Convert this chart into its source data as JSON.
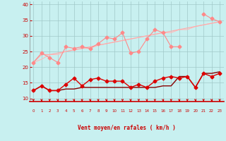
{
  "xlabel": "Vent moyen/en rafales ( km/h )",
  "bg_color": "#c8f0f0",
  "grid_color": "#a0c8c8",
  "xlim": [
    -0.5,
    23.5
  ],
  "ylim": [
    9,
    41
  ],
  "yticks": [
    10,
    15,
    20,
    25,
    30,
    35,
    40
  ],
  "xticks": [
    0,
    1,
    2,
    3,
    4,
    5,
    6,
    7,
    8,
    9,
    10,
    11,
    12,
    13,
    14,
    15,
    16,
    17,
    18,
    19,
    20,
    21,
    22,
    23
  ],
  "x": [
    0,
    1,
    2,
    3,
    4,
    5,
    6,
    7,
    8,
    9,
    10,
    11,
    12,
    13,
    14,
    15,
    16,
    17,
    18,
    19,
    20,
    21,
    22,
    23
  ],
  "line1": [
    21.5,
    24.5,
    23.0,
    21.5,
    26.5,
    26.0,
    26.5,
    26.0,
    27.5,
    29.5,
    29.0,
    31.0,
    24.5,
    25.0,
    29.0,
    32.0,
    31.0,
    26.5,
    26.5,
    null,
    null,
    37.0,
    35.5,
    34.5
  ],
  "line2": [
    21.5,
    24.0,
    24.0,
    24.5,
    25.0,
    25.5,
    26.0,
    26.5,
    27.0,
    27.5,
    28.0,
    28.5,
    29.0,
    29.5,
    30.0,
    30.5,
    31.0,
    31.5,
    32.0,
    32.5,
    33.0,
    33.5,
    34.0,
    34.5
  ],
  "line3": [
    21.5,
    22.5,
    24.0,
    24.0,
    25.0,
    25.5,
    26.0,
    26.0,
    27.0,
    27.5,
    28.0,
    28.5,
    29.0,
    29.5,
    30.0,
    30.5,
    31.0,
    31.0,
    32.0,
    32.0,
    33.0,
    33.5,
    34.0,
    34.5
  ],
  "line4": [
    12.5,
    14.0,
    12.5,
    12.5,
    14.5,
    16.5,
    14.0,
    16.0,
    16.5,
    15.5,
    15.5,
    15.5,
    13.5,
    14.5,
    13.5,
    15.5,
    16.5,
    17.0,
    16.5,
    17.0,
    13.5,
    18.0,
    17.0,
    18.0
  ],
  "line5": [
    12.5,
    14.0,
    12.5,
    12.5,
    13.0,
    13.0,
    13.5,
    13.5,
    13.5,
    13.5,
    13.5,
    13.5,
    13.5,
    13.5,
    13.5,
    13.5,
    14.0,
    14.0,
    17.0,
    17.0,
    13.5,
    18.0,
    18.0,
    18.5
  ],
  "line1_color": "#ff8888",
  "line2_color": "#ffaaaa",
  "line3_color": "#ffbbbb",
  "line4_color": "#dd0000",
  "line5_color": "#880000",
  "arrow_color": "#cc0000",
  "spine_color": "#888888",
  "xlabel_color": "#cc0000",
  "xtick_color": "#cc0000",
  "ytick_color": "#cc0000"
}
